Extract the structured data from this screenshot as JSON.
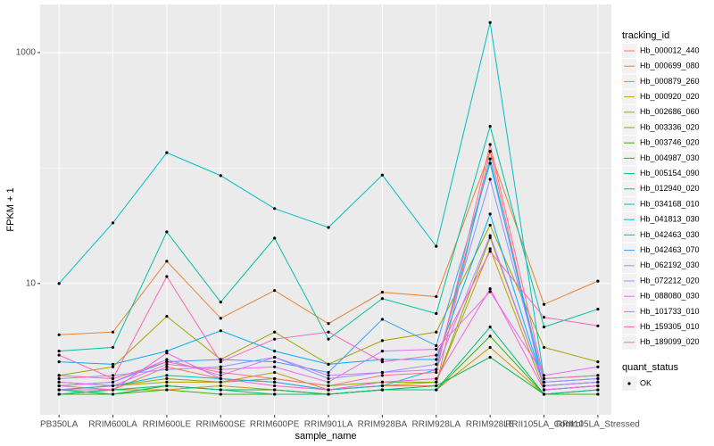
{
  "chart_data": {
    "type": "line",
    "x_label": "sample_name",
    "y_label": "FPKM + 1",
    "log_y": true,
    "grid": true,
    "legend_position": "right",
    "legend_title": "tracking_id",
    "point_color": "#000000",
    "shape_legend": {
      "title": "quant_status",
      "entries": [
        "OK"
      ]
    },
    "categories": [
      "PB350LA",
      "RRIM600LA",
      "RRIM600LE",
      "RRIM600SE",
      "RRIM600PE",
      "RRIM901LA",
      "RRIM928BA",
      "RRIM928LA",
      "RRIM928LE",
      "RRII105LA_Control",
      "RRII105LA_Stressed"
    ],
    "ylim": [
      0.73,
      2610
    ],
    "yticks": [
      10,
      1000
    ],
    "series": [
      {
        "name": "Hb_000012_440",
        "color": "#F8766D",
        "values": [
          1.3,
          1.2,
          1.9,
          1.5,
          1.4,
          1.2,
          1.3,
          1.3,
          140,
          1.2,
          1.3
        ]
      },
      {
        "name": "Hb_000699_080",
        "color": "#EA8331",
        "values": [
          3.6,
          3.8,
          15.6,
          5.0,
          8.7,
          4.5,
          8.4,
          7.7,
          139,
          6.6,
          10.5
        ]
      },
      {
        "name": "Hb_000879_260",
        "color": "#D89000",
        "values": [
          1.1,
          1.2,
          1.2,
          1.3,
          1.2,
          1.1,
          1.2,
          1.2,
          2.8,
          1.1,
          1.1
        ]
      },
      {
        "name": "Hb_000920_020",
        "color": "#C09B00",
        "values": [
          1.2,
          1.3,
          1.4,
          1.4,
          1.7,
          1.2,
          1.3,
          1.4,
          20,
          1.2,
          1.3
        ]
      },
      {
        "name": "Hb_002686_060",
        "color": "#A3A500",
        "values": [
          1.6,
          1.9,
          5.2,
          2.2,
          3.8,
          2.0,
          3.2,
          3.8,
          32,
          2.8,
          2.1
        ]
      },
      {
        "name": "Hb_003336_020",
        "color": "#7CAE00",
        "values": [
          1.4,
          1.3,
          1.5,
          1.4,
          1.5,
          1.3,
          1.4,
          1.4,
          25,
          1.3,
          1.4
        ]
      },
      {
        "name": "Hb_003746_020",
        "color": "#39B600",
        "values": [
          1.1,
          1.1,
          1.2,
          1.1,
          1.1,
          1.1,
          1.2,
          1.2,
          3.5,
          1.1,
          1.1
        ]
      },
      {
        "name": "Hb_004987_030",
        "color": "#00BB4E",
        "values": [
          1.2,
          1.1,
          1.3,
          1.2,
          1.2,
          1.1,
          1.2,
          1.3,
          2.3,
          1.1,
          1.2
        ]
      },
      {
        "name": "Hb_005154_090",
        "color": "#00BF7D",
        "values": [
          1.1,
          1.2,
          1.3,
          1.2,
          1.1,
          1.1,
          1.2,
          1.2,
          4.2,
          1.1,
          1.2
        ]
      },
      {
        "name": "Hb_012940_020",
        "color": "#00C1A3",
        "values": [
          2.6,
          2.8,
          28,
          6.9,
          24.7,
          3.3,
          7.4,
          5.5,
          230,
          4.2,
          6.0
        ]
      },
      {
        "name": "Hb_034168_010",
        "color": "#00BFC4",
        "values": [
          10,
          33.5,
          136,
          86,
          44.6,
          30.6,
          87,
          21,
          1820,
          1.5,
          1.6
        ]
      },
      {
        "name": "Hb_041813_030",
        "color": "#00BAE0",
        "values": [
          1.2,
          1.3,
          1.6,
          1.5,
          1.4,
          1.2,
          1.3,
          1.8,
          120,
          1.2,
          1.3
        ]
      },
      {
        "name": "Hb_042463_030",
        "color": "#00B0F6",
        "values": [
          2.1,
          2.0,
          2.6,
          3.9,
          2.6,
          2.0,
          2.2,
          2.2,
          40,
          1.3,
          1.4
        ]
      },
      {
        "name": "Hb_042463_070",
        "color": "#35A2FF",
        "values": [
          1.3,
          1.4,
          2.1,
          2.2,
          2.1,
          1.7,
          4.9,
          2.9,
          110,
          1.4,
          1.5
        ]
      },
      {
        "name": "Hb_062192_030",
        "color": "#9590FF",
        "values": [
          1.5,
          1.6,
          1.8,
          1.9,
          2.3,
          1.5,
          1.7,
          2.0,
          80,
          1.4,
          1.5
        ]
      },
      {
        "name": "Hb_072212_020",
        "color": "#C77CFF",
        "values": [
          1.3,
          1.4,
          2.2,
          1.6,
          2.3,
          1.6,
          1.7,
          1.8,
          26,
          1.3,
          1.4
        ]
      },
      {
        "name": "Hb_088080_030",
        "color": "#E76BF3",
        "values": [
          1.4,
          1.3,
          2.0,
          1.8,
          1.9,
          1.4,
          2.6,
          2.7,
          8.5,
          1.6,
          1.9
        ]
      },
      {
        "name": "Hb_101733_010",
        "color": "#FA62DB",
        "values": [
          1.2,
          1.2,
          2.5,
          1.5,
          1.3,
          1.2,
          1.4,
          1.5,
          9.0,
          1.2,
          1.3
        ]
      },
      {
        "name": "Hb_159305_010",
        "color": "#FF62BC",
        "values": [
          2.4,
          1.5,
          11.5,
          2.1,
          3.3,
          3.8,
          2.1,
          2.4,
          19,
          5.1,
          4.3
        ]
      },
      {
        "name": "Hb_189099_020",
        "color": "#FF6C91",
        "values": [
          1.6,
          1.5,
          2.1,
          1.7,
          1.5,
          1.3,
          1.6,
          1.7,
          160,
          1.5,
          1.6
        ]
      }
    ]
  }
}
